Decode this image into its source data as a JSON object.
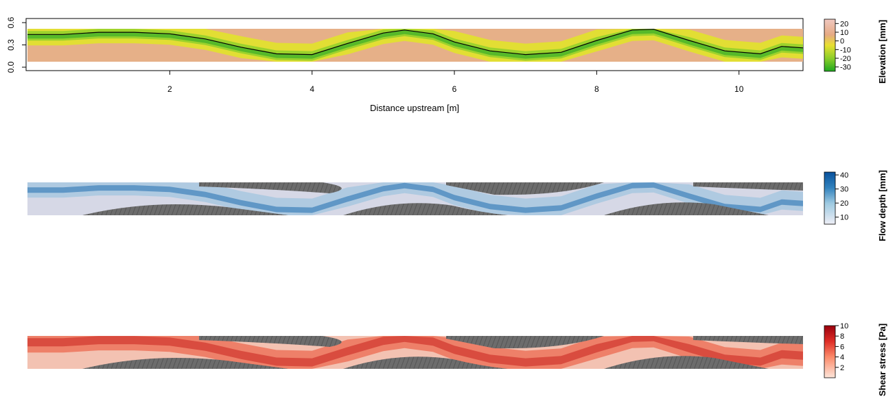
{
  "chart_data": [
    {
      "type": "heatmap",
      "panel": "elevation",
      "xlabel": "Distance upstream [m]",
      "x_ticks": [
        2,
        4,
        6,
        8,
        10
      ],
      "xlim": [
        0,
        10.9
      ],
      "y_ticks": [
        0.0,
        0.3,
        0.6
      ],
      "y_tick_labels": [
        "0.0",
        "0.3",
        "0.6"
      ],
      "ylim": [
        0.0,
        0.6
      ],
      "colorbar_label": "Elevation [mm]",
      "colorbar_ticks": [
        20,
        10,
        0,
        -10,
        -20,
        -30
      ],
      "colorbar_range": [
        -35,
        25
      ],
      "colors": {
        "low": "#2ca02c",
        "mid": "#e8e030",
        "high": "#e8b8a8"
      },
      "thalweg": {
        "x": [
          0.0,
          0.5,
          1.0,
          1.5,
          2.0,
          2.5,
          3.0,
          3.5,
          4.0,
          4.5,
          5.0,
          5.3,
          5.7,
          6.0,
          6.5,
          7.0,
          7.5,
          8.0,
          8.5,
          8.8,
          9.3,
          9.8,
          10.3,
          10.6,
          10.9
        ],
        "y": [
          0.44,
          0.44,
          0.47,
          0.47,
          0.45,
          0.38,
          0.27,
          0.18,
          0.17,
          0.32,
          0.46,
          0.5,
          0.45,
          0.34,
          0.22,
          0.17,
          0.2,
          0.36,
          0.5,
          0.51,
          0.36,
          0.22,
          0.18,
          0.28,
          0.26
        ]
      }
    },
    {
      "type": "heatmap",
      "panel": "flow_depth",
      "colorbar_label": "Flow depth [mm]",
      "colorbar_ticks": [
        40,
        30,
        20,
        10
      ],
      "colorbar_range": [
        5,
        42
      ],
      "colors": {
        "low": "#eeeef6",
        "high": "#08519c",
        "dry": "#6e6e6e"
      }
    },
    {
      "type": "heatmap",
      "panel": "shear_stress",
      "colorbar_label": "Shear stress [Pa]",
      "colorbar_ticks": [
        10,
        8,
        6,
        4,
        2
      ],
      "colorbar_range": [
        0,
        10
      ],
      "colors": {
        "low": "#fde0d2",
        "high": "#99000d",
        "dry": "#6e6e6e"
      }
    }
  ]
}
